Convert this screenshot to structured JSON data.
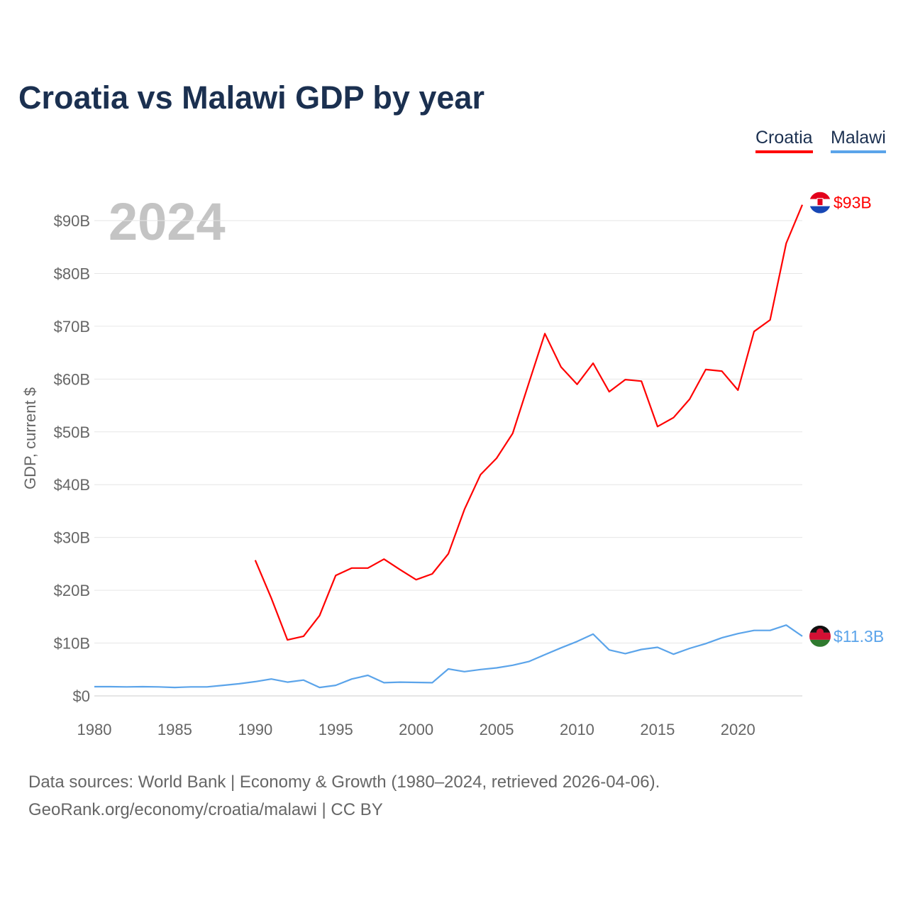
{
  "title": "Croatia vs Malawi GDP by year",
  "legend": [
    {
      "label": "Croatia",
      "color": "#ff0000"
    },
    {
      "label": "Malawi",
      "color": "#5ba4ea"
    }
  ],
  "footer": {
    "line1": "Data sources: World Bank | Economy & Growth (1980–2024, retrieved 2026-04-06).",
    "line2": "GeoRank.org/economy/croatia/malawi | CC BY"
  },
  "chart_data": {
    "type": "line",
    "title": "Croatia vs Malawi GDP by year",
    "ylabel": "GDP, current $",
    "xlabel": "",
    "year_watermark": "2024",
    "xlim": [
      1980,
      2024
    ],
    "ylim": [
      0,
      93
    ],
    "x_ticks": [
      1980,
      1985,
      1990,
      1995,
      2000,
      2005,
      2010,
      2015,
      2020
    ],
    "y_ticks": [
      0,
      10,
      20,
      30,
      40,
      50,
      60,
      70,
      80,
      90
    ],
    "y_tick_labels": [
      "$0",
      "$10B",
      "$20B",
      "$30B",
      "$40B",
      "$50B",
      "$60B",
      "$70B",
      "$80B",
      "$90B"
    ],
    "grid": true,
    "legend_position": "top-right",
    "series": [
      {
        "name": "Croatia",
        "color": "#ff0000",
        "end_label": "$93B",
        "start_year": 1990,
        "values": [
          25.7,
          18.5,
          10.6,
          11.3,
          15.2,
          22.8,
          24.2,
          24.2,
          25.9,
          23.9,
          22.0,
          23.1,
          26.9,
          35.3,
          41.9,
          45.0,
          49.7,
          59.2,
          68.6,
          62.3,
          59.0,
          63.0,
          57.6,
          59.9,
          59.6,
          51.0,
          52.7,
          56.2,
          61.8,
          61.5,
          57.9,
          69.0,
          71.2,
          85.7,
          93.0
        ]
      },
      {
        "name": "Malawi",
        "color": "#5ba4ea",
        "end_label": "$11.3B",
        "start_year": 1980,
        "values": [
          1.75,
          1.75,
          1.7,
          1.75,
          1.7,
          1.6,
          1.7,
          1.7,
          2.0,
          2.3,
          2.7,
          3.2,
          2.6,
          3.0,
          1.6,
          2.0,
          3.2,
          3.9,
          2.5,
          2.6,
          2.55,
          2.5,
          5.1,
          4.6,
          5.0,
          5.3,
          5.8,
          6.5,
          7.8,
          9.1,
          10.3,
          11.7,
          8.7,
          8.0,
          8.8,
          9.2,
          7.9,
          9.0,
          9.9,
          11.0,
          11.8,
          12.4,
          12.4,
          13.4,
          11.3
        ]
      }
    ]
  }
}
